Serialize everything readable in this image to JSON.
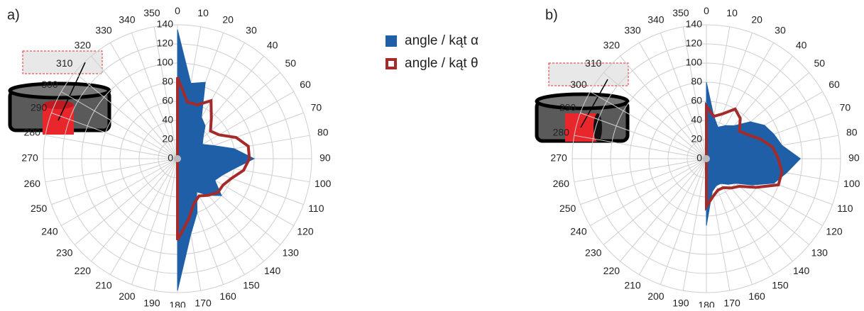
{
  "chart_data": [
    {
      "type": "radar",
      "panel_label": "a)",
      "categories": [
        0,
        10,
        20,
        30,
        40,
        50,
        60,
        70,
        80,
        90,
        100,
        110,
        120,
        130,
        140,
        150,
        160,
        170,
        180,
        190,
        200,
        210,
        220,
        230,
        240,
        250,
        260,
        270,
        280,
        290,
        300,
        310,
        320,
        330,
        340,
        350
      ],
      "ylim": [
        0,
        140
      ],
      "yticks": [
        0,
        20,
        40,
        60,
        80,
        100,
        120,
        140
      ],
      "grid": true,
      "series": [
        {
          "name": "angle / kąt α",
          "color": "#1f5fa8",
          "fill": true,
          "values": [
            135,
            80,
            85,
            50,
            45,
            35,
            30,
            40,
            60,
            80,
            60,
            50,
            45,
            60,
            50,
            40,
            60,
            80,
            138,
            0,
            0,
            0,
            0,
            0,
            0,
            0,
            0,
            0,
            0,
            0,
            0,
            0,
            0,
            0,
            0,
            0
          ]
        },
        {
          "name": "angle / kąt θ",
          "color": "#a52a2a",
          "fill": false,
          "values": [
            85,
            60,
            60,
            70,
            55,
            45,
            50,
            65,
            75,
            75,
            70,
            60,
            55,
            55,
            50,
            45,
            50,
            65,
            85,
            0,
            0,
            0,
            0,
            0,
            0,
            0,
            0,
            0,
            0,
            0,
            0,
            0,
            0,
            0,
            0,
            0
          ]
        }
      ]
    },
    {
      "type": "radar",
      "panel_label": "b)",
      "categories": [
        0,
        10,
        20,
        30,
        40,
        50,
        60,
        70,
        80,
        90,
        100,
        110,
        120,
        130,
        140,
        150,
        160,
        170,
        180,
        190,
        200,
        210,
        220,
        230,
        240,
        250,
        260,
        270,
        280,
        290,
        300,
        310,
        320,
        330,
        340,
        350
      ],
      "ylim": [
        0,
        140
      ],
      "yticks": [
        0,
        20,
        40,
        60,
        80,
        100,
        120,
        140
      ],
      "grid": true,
      "series": [
        {
          "color": "#1f5fa8",
          "fill": true,
          "values": [
            80,
            45,
            35,
            40,
            45,
            60,
            70,
            75,
            80,
            98,
            85,
            75,
            55,
            40,
            35,
            30,
            30,
            35,
            70,
            0,
            0,
            0,
            0,
            0,
            0,
            0,
            0,
            0,
            0,
            0,
            0,
            0,
            0,
            0,
            0,
            0
          ]
        },
        {
          "color": "#a52a2a",
          "fill": false,
          "values": [
            55,
            45,
            50,
            60,
            55,
            45,
            50,
            60,
            70,
            75,
            80,
            80,
            60,
            45,
            40,
            35,
            35,
            40,
            50,
            0,
            0,
            0,
            0,
            0,
            0,
            0,
            0,
            0,
            0,
            0,
            0,
            0,
            0,
            0,
            0,
            0
          ]
        }
      ]
    }
  ]
}
